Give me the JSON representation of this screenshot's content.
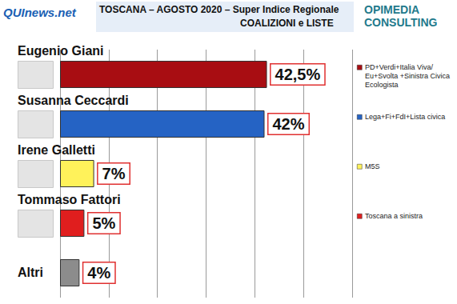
{
  "chart_data": {
    "type": "bar",
    "orientation": "horizontal",
    "title": "TOSCANA – AGOSTO 2020 – Super Indice Regionale",
    "subtitle": "COALIZIONI e LISTE",
    "source_logo": "QUInews.net",
    "consultant_logo": "OPIMEDIA CONSULTING",
    "categories": [
      "Eugenio Giani",
      "Susanna Ceccardi",
      "Irene Galletti",
      "Tommaso Fattori",
      "Altri"
    ],
    "values": [
      42.5,
      42,
      7,
      5,
      4
    ],
    "value_labels": [
      "42,5%",
      "42%",
      "7%",
      "5%",
      "4%"
    ],
    "colors": [
      "#a80d12",
      "#2563c4",
      "#fff25a",
      "#e01e1e",
      "#8c8c8c"
    ],
    "coalitions": [
      "PD+Verdi+Italia Viva/Eu+Svolta +Sinistra Civica Ecologista",
      "Lega+Fi+FdI+Lista civica",
      "M5S",
      "Toscana a sinistra",
      null
    ],
    "xlim": [
      0,
      60
    ],
    "xticks": [
      0,
      10,
      20,
      30,
      40,
      50,
      60
    ],
    "grid": true,
    "data_labels": true,
    "tick_labels": false
  }
}
